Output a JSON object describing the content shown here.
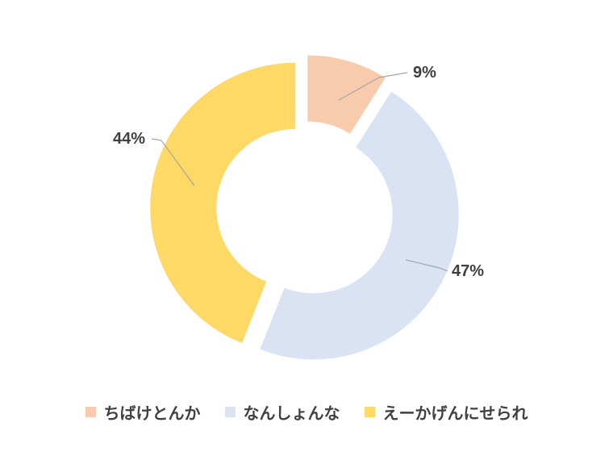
{
  "chart_data": {
    "type": "pie",
    "style": "doughnut, exploded slices",
    "categories": [
      "ちばけとんか",
      "なんしょんな",
      "えーかげんにせられ"
    ],
    "values": [
      9,
      47,
      44
    ],
    "value_labels": [
      "9%",
      "47%",
      "44%"
    ],
    "unit": "%",
    "colors": [
      "#F8CBAD",
      "#DAE3F3",
      "#FFD966"
    ],
    "title": "",
    "legend_position": "bottom"
  }
}
